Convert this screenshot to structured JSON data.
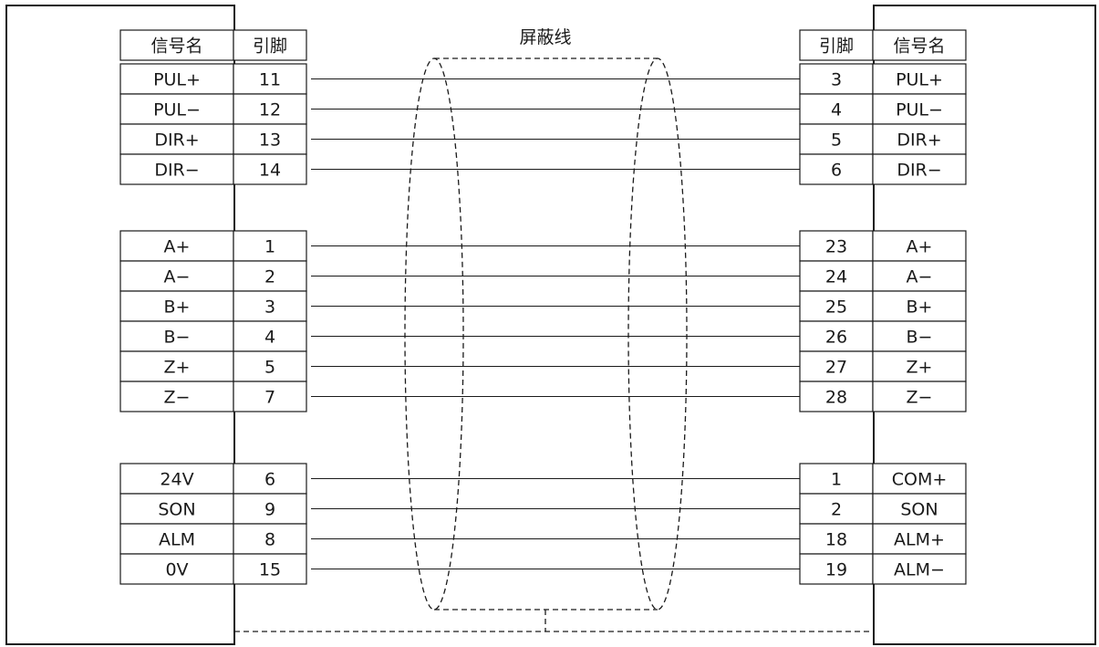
{
  "shield": {
    "label": "屏蔽线"
  },
  "left_header": {
    "signal": "信号名",
    "pin": "引脚"
  },
  "right_header": {
    "pin": "引脚",
    "signal": "信号名"
  },
  "groups": [
    {
      "rows": [
        {
          "left_signal": "PUL+",
          "left_pin": "11",
          "right_pin": "3",
          "right_signal": "PUL+"
        },
        {
          "left_signal": "PUL−",
          "left_pin": "12",
          "right_pin": "4",
          "right_signal": "PUL−"
        },
        {
          "left_signal": "DIR+",
          "left_pin": "13",
          "right_pin": "5",
          "right_signal": "DIR+"
        },
        {
          "left_signal": "DIR−",
          "left_pin": "14",
          "right_pin": "6",
          "right_signal": "DIR−"
        }
      ]
    },
    {
      "rows": [
        {
          "left_signal": "A+",
          "left_pin": "1",
          "right_pin": "23",
          "right_signal": "A+"
        },
        {
          "left_signal": "A−",
          "left_pin": "2",
          "right_pin": "24",
          "right_signal": "A−"
        },
        {
          "left_signal": "B+",
          "left_pin": "3",
          "right_pin": "25",
          "right_signal": "B+"
        },
        {
          "left_signal": "B−",
          "left_pin": "4",
          "right_pin": "26",
          "right_signal": "B−"
        },
        {
          "left_signal": "Z+",
          "left_pin": "5",
          "right_pin": "27",
          "right_signal": "Z+"
        },
        {
          "left_signal": "Z−",
          "left_pin": "7",
          "right_pin": "28",
          "right_signal": "Z−"
        }
      ]
    },
    {
      "rows": [
        {
          "left_signal": "24V",
          "left_pin": "6",
          "right_pin": "1",
          "right_signal": "COM+"
        },
        {
          "left_signal": "SON",
          "left_pin": "9",
          "right_pin": "2",
          "right_signal": "SON"
        },
        {
          "left_signal": "ALM",
          "left_pin": "8",
          "right_pin": "18",
          "right_signal": "ALM+"
        },
        {
          "left_signal": "0V",
          "left_pin": "15",
          "right_pin": "19",
          "right_signal": "ALM−"
        }
      ]
    }
  ]
}
